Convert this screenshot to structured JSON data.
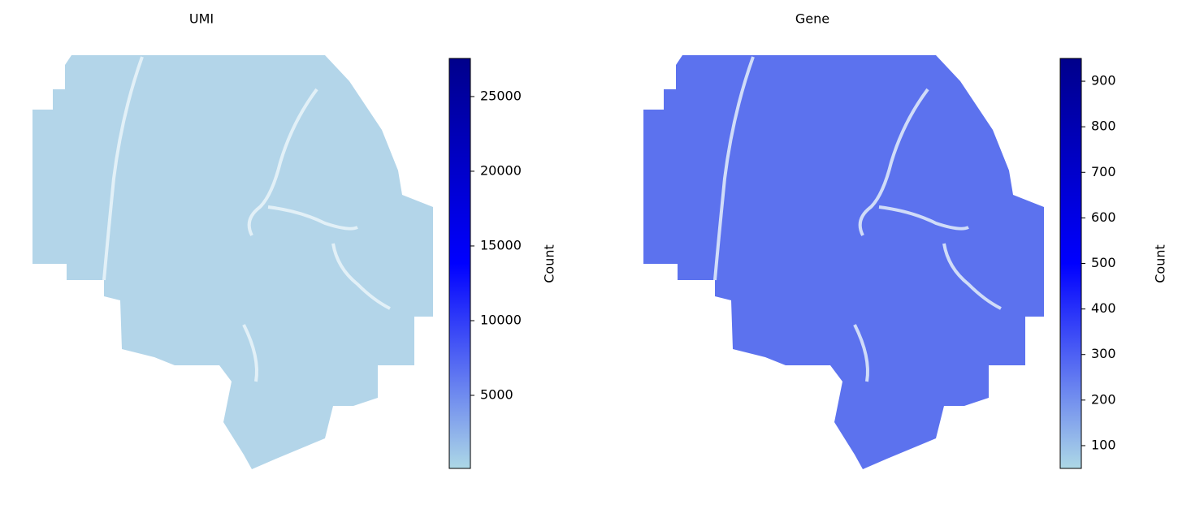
{
  "chart_data": [
    {
      "type": "spatial",
      "title": "UMI",
      "colorbar_label": "Count",
      "color": "#b3d5e9",
      "colormap": [
        "#add8e6",
        "#0000ff",
        "#00008b"
      ],
      "ylim": [
        110,
        27550
      ],
      "yticks": [
        5000,
        10000,
        15000,
        20000,
        25000
      ]
    },
    {
      "type": "spatial",
      "title": "Gene",
      "colorbar_label": "Count",
      "color": "#5c72ee",
      "colormap": [
        "#add8e6",
        "#0000ff",
        "#00008b"
      ],
      "ylim": [
        50,
        950
      ],
      "yticks": [
        100,
        200,
        300,
        400,
        500,
        600,
        700,
        800,
        900
      ]
    }
  ]
}
